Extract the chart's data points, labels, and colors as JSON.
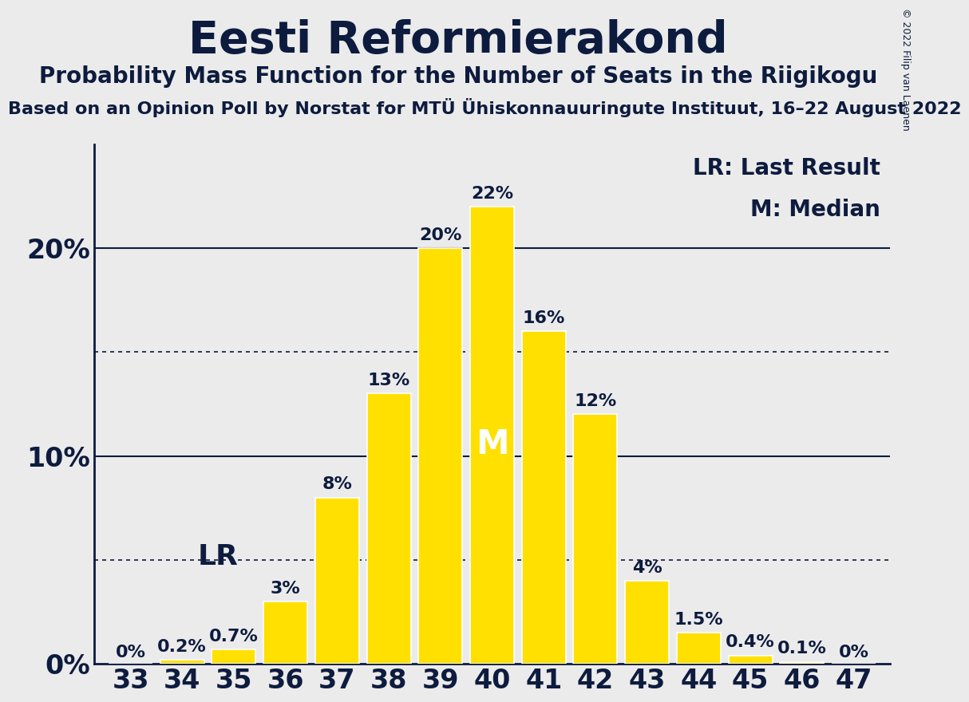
{
  "title": "Eesti Reformierakond",
  "subtitle": "Probability Mass Function for the Number of Seats in the Riigikogu",
  "source_line": "Based on an Opinion Poll by Norstat for MTÜ Ühiskonnauuringute Instituut, 16–22 August 2022",
  "copyright": "© 2022 Filip van Laenen",
  "seats": [
    33,
    34,
    35,
    36,
    37,
    38,
    39,
    40,
    41,
    42,
    43,
    44,
    45,
    46,
    47
  ],
  "probabilities": [
    0.0,
    0.2,
    0.7,
    3.0,
    8.0,
    13.0,
    20.0,
    22.0,
    16.0,
    12.0,
    4.0,
    1.5,
    0.4,
    0.1,
    0.0
  ],
  "bar_color": "#FFE000",
  "bar_edgecolor": "#FFFFFF",
  "background_color": "#EBEBEB",
  "text_color": "#0D1B3E",
  "LR_seat": 34,
  "median_seat": 40,
  "solid_lines": [
    10,
    20
  ],
  "dotted_lines": [
    5,
    15
  ],
  "ylim": [
    0,
    25
  ],
  "yticks": [
    0,
    10,
    20
  ],
  "ylabel_fontsize": 24,
  "xlabel_fontsize": 24,
  "title_fontsize": 40,
  "subtitle_fontsize": 20,
  "source_fontsize": 16,
  "bar_label_fontsize": 16,
  "LR_fontsize": 26,
  "M_fontsize": 30,
  "legend_fontsize": 20,
  "copyright_fontsize": 9
}
